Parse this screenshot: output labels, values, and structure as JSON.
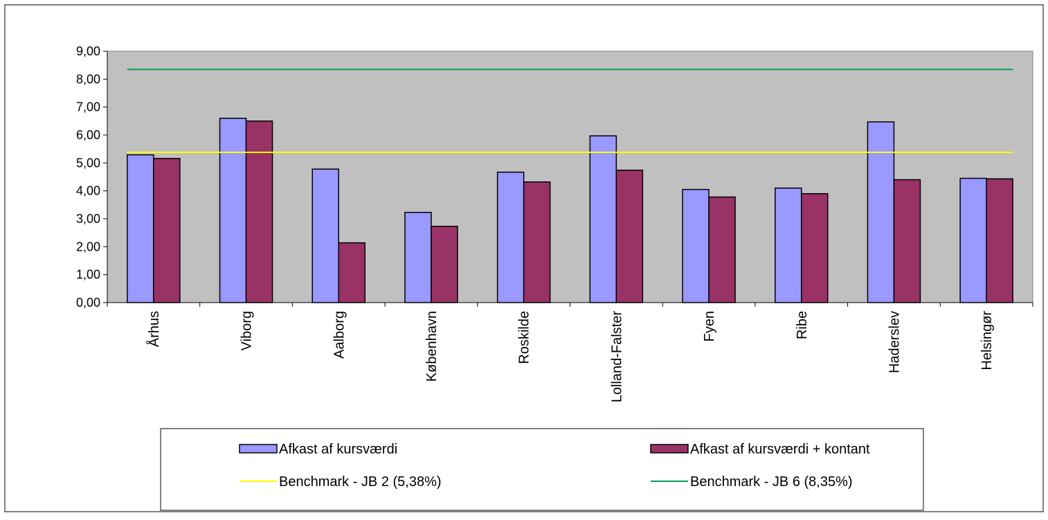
{
  "chart_data": {
    "type": "bar",
    "title": "",
    "xlabel": "",
    "ylabel": "",
    "categories": [
      "Århus",
      "Viborg",
      "Aalborg",
      "København",
      "Roskilde",
      "Lolland-Falster",
      "Fyen",
      "Ribe",
      "Haderslev",
      "Helsingør"
    ],
    "series": [
      {
        "name": "Afkast af kursværdi",
        "color": "#9999ff",
        "values": [
          5.29,
          6.6,
          4.78,
          3.23,
          4.67,
          5.97,
          4.05,
          4.1,
          6.47,
          4.45
        ]
      },
      {
        "name": "Afkast af kursværdi + kontant",
        "color": "#993366",
        "values": [
          5.16,
          6.5,
          2.14,
          2.73,
          4.32,
          4.74,
          3.78,
          3.9,
          4.4,
          4.43
        ]
      }
    ],
    "benchmarks": [
      {
        "name": "Benchmark - JB 2 (5,38%)",
        "value": 5.38,
        "color": "#ffff00"
      },
      {
        "name": "Benchmark - JB 6 (8,35%)",
        "value": 8.35,
        "color": "#00a050"
      }
    ],
    "ylim": [
      0,
      9
    ],
    "yticks": [
      0,
      1,
      2,
      3,
      4,
      5,
      6,
      7,
      8,
      9
    ],
    "ytick_labels": [
      "0,00",
      "1,00",
      "2,00",
      "3,00",
      "4,00",
      "5,00",
      "6,00",
      "7,00",
      "8,00",
      "9,00"
    ],
    "plot_background": "#c0c0c0",
    "grid": false,
    "legend_placement": "bottom"
  }
}
